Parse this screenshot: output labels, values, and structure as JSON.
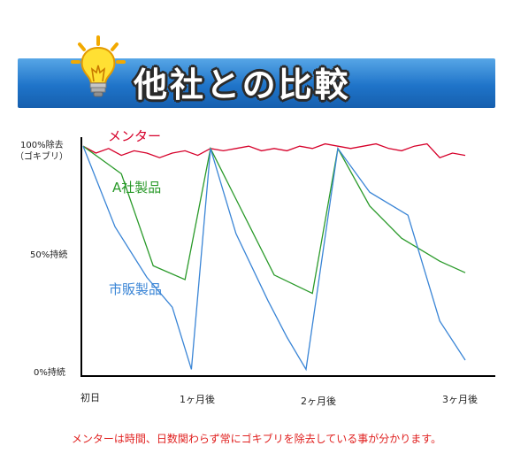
{
  "header": {
    "title": "他社との比較"
  },
  "chart_data": {
    "type": "line",
    "x_labels": [
      "初日",
      "1ヶ月後",
      "2ヶ月後",
      "3ヶ月後"
    ],
    "y_labels": {
      "top": "100%除去",
      "top_sub": "（ゴキブリ）",
      "middle": "50%持続",
      "bottom": "0%持続"
    },
    "ylim": [
      0,
      100
    ],
    "series": [
      {
        "name": "メンター",
        "color": "#d6002a",
        "x": [
          0,
          0.1,
          0.2,
          0.3,
          0.4,
          0.5,
          0.6,
          0.7,
          0.8,
          0.9,
          1.0,
          1.1,
          1.2,
          1.3,
          1.4,
          1.5,
          1.6,
          1.7,
          1.8,
          1.9,
          2.0,
          2.1,
          2.2,
          2.3,
          2.4,
          2.5,
          2.6,
          2.7,
          2.8,
          2.9,
          3.0
        ],
        "values": [
          98,
          95,
          97,
          94,
          96,
          95,
          93,
          95,
          96,
          94,
          97,
          96,
          97,
          98,
          96,
          97,
          96,
          98,
          97,
          99,
          98,
          97,
          98,
          99,
          97,
          96,
          98,
          99,
          93,
          95,
          94
        ]
      },
      {
        "name": "A社製品",
        "color": "#2a9a2a",
        "x": [
          0,
          0.3,
          0.55,
          0.8,
          1.0,
          1.2,
          1.5,
          1.8,
          2.0,
          2.25,
          2.5,
          2.8,
          3.0
        ],
        "values": [
          98,
          86,
          46,
          40,
          97,
          75,
          42,
          34,
          97,
          72,
          58,
          48,
          43
        ]
      },
      {
        "name": "市販製品",
        "color": "#3a85d6",
        "x": [
          0,
          0.25,
          0.5,
          0.7,
          0.85,
          1.0,
          1.2,
          1.45,
          1.6,
          1.75,
          2.0,
          2.25,
          2.55,
          2.8,
          3.0
        ],
        "values": [
          98,
          63,
          41,
          28,
          1,
          97,
          60,
          31,
          15,
          1,
          97,
          78,
          68,
          22,
          5
        ]
      }
    ]
  },
  "footnote": "メンターは時間、日数関わらず常にゴキブリを除去している事が分かります。"
}
